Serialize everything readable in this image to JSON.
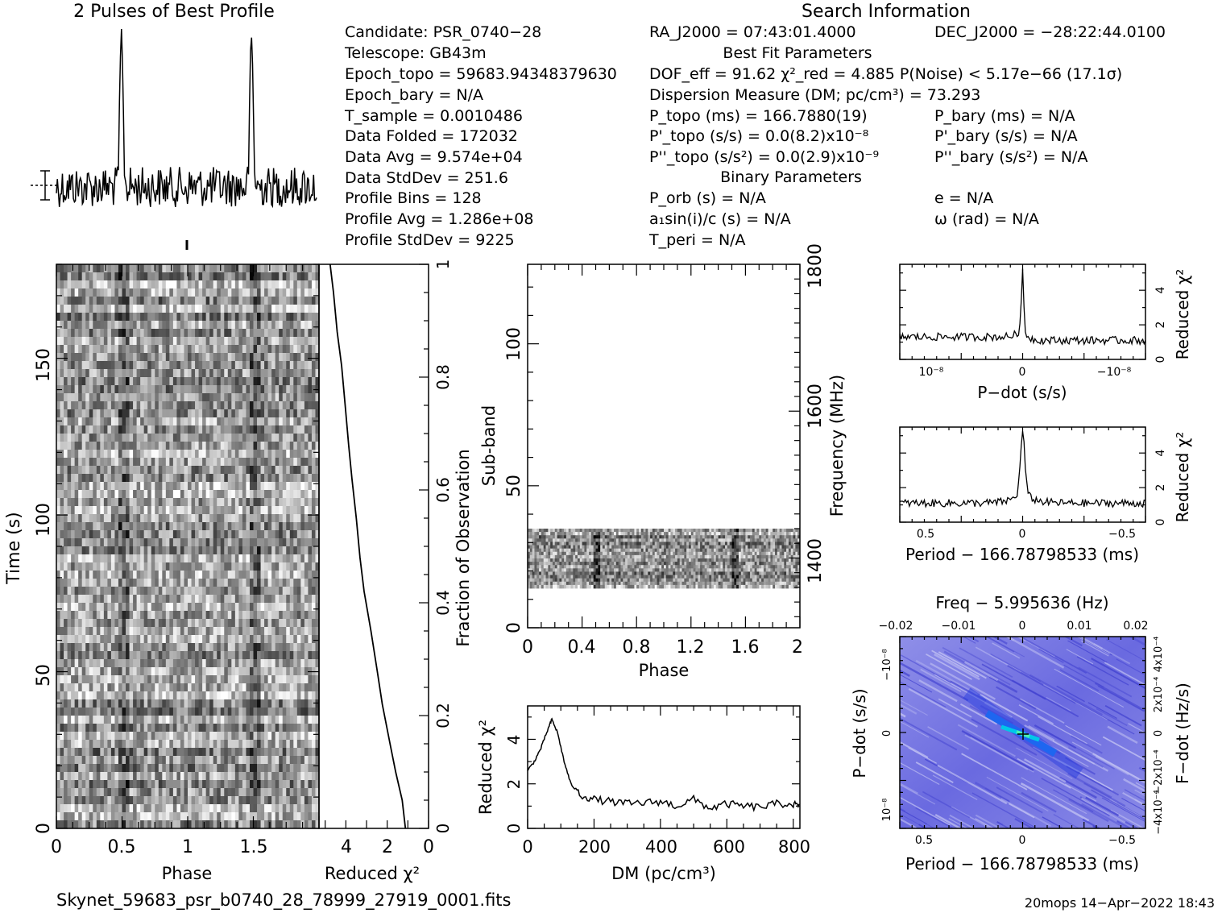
{
  "titles": {
    "profile_title": "2 Pulses of Best Profile",
    "search_title": "Search Information",
    "best_fit_title": "Best Fit Parameters",
    "binary_title": "Binary Parameters"
  },
  "info_col1": [
    "Candidate:  PSR_0740−28",
    "Telescope:  GB43m",
    "Epoch_topo = 59683.94348379630",
    "Epoch_bary = N/A",
    "T_sample    =  0.0010486",
    "Data Folded    =  172032",
    "Data Avg        =  9.574e+04",
    "Data StdDev    =  251.6",
    "Profile Bins     =  128",
    "Profile Avg      =  1.286e+08",
    "Profile StdDev =  9225"
  ],
  "info_col2": {
    "ra": "RA_J2000 = 07:43:01.4000",
    "dec": "DEC_J2000 = −28:22:44.0100",
    "dof_line": "DOF_eff = 91.62  χ²_red = 4.885  P(Noise) < 5.17e−66  (17.1σ)",
    "dm_line": "Dispersion Measure (DM; pc/cm³) = 73.293",
    "p_topo": "P_topo (ms) =  166.7880(19)",
    "pd_topo": "P'_topo (s/s) = 0.0(8.2)x10⁻⁸",
    "pdd_topo": "P''_topo (s/s²) = 0.0(2.9)x10⁻⁹",
    "p_bary": "P_bary (ms) = N/A",
    "pd_bary": "P'_bary (s/s) = N/A",
    "pdd_bary": "P''_bary (s/s²) = N/A",
    "porb": "P_orb (s) = N/A",
    "a1": "a₁sin(i)/c (s) = N/A",
    "tperi": "T_peri = N/A",
    "ecc": "e = N/A",
    "omega": "ω (rad) = N/A"
  },
  "footer": {
    "filename": "Skynet_59683_psr_b0740_28_78999_27919_0001.fits",
    "stamp": "20mops 14−Apr−2022 18:43"
  },
  "chart_data": [
    {
      "id": "profile",
      "type": "line",
      "title": "2 Pulses of Best Profile",
      "x": "phase 0-2",
      "peaks_phase": [
        0.5,
        1.5
      ]
    },
    {
      "id": "time_phase",
      "type": "heatmap",
      "xlabel": "Phase",
      "ylabel": "Time (s)",
      "xticks": [
        "0",
        "0.5",
        "1",
        "1.5"
      ],
      "yticks": [
        "0",
        "50",
        "100",
        "150"
      ],
      "xlim": [
        0,
        2
      ],
      "ylim": [
        0,
        180
      ]
    },
    {
      "id": "time_chi2",
      "type": "line",
      "xlabel": "Reduced χ²",
      "ylabel": "Fraction of Observation",
      "xticks": [
        "4",
        "2",
        "0"
      ],
      "yticks": [
        "0",
        "0.2",
        "0.4",
        "0.6",
        "0.8",
        "1"
      ],
      "x": [
        1.1,
        1.3,
        1.6,
        1.9,
        2.2,
        2.5,
        2.8,
        3.1,
        3.3,
        3.5,
        3.7,
        3.9,
        4.0,
        4.2,
        4.4,
        4.6,
        4.8
      ],
      "y": [
        0,
        0.05,
        0.1,
        0.15,
        0.22,
        0.28,
        0.35,
        0.42,
        0.48,
        0.55,
        0.62,
        0.68,
        0.75,
        0.82,
        0.88,
        0.95,
        1.0
      ]
    },
    {
      "id": "subband_phase",
      "type": "heatmap",
      "xlabel": "Phase",
      "ylabel": "Sub-band",
      "y2label": "Frequency (MHz)",
      "xticks": [
        "0",
        "0.4",
        "0.8",
        "1.2",
        "1.6",
        "2"
      ],
      "yticks": [
        "0",
        "50",
        "100"
      ],
      "y2ticks": [
        "1400",
        "1600",
        "1800"
      ],
      "data_subbands": [
        14,
        35
      ]
    },
    {
      "id": "dm_chi2",
      "type": "line",
      "xlabel": "DM (pc/cm³)",
      "ylabel": "Reduced χ²",
      "xticks": [
        "0",
        "200",
        "400",
        "600",
        "800"
      ],
      "yticks": [
        "0",
        "2",
        "4"
      ],
      "x": [
        0,
        20,
        40,
        60,
        73,
        90,
        110,
        130,
        160,
        200,
        250,
        300,
        350,
        400,
        450,
        500,
        550,
        600,
        650,
        700,
        750,
        800,
        820
      ],
      "y": [
        2.6,
        3.0,
        3.6,
        4.4,
        4.9,
        4.3,
        3.0,
        2.0,
        1.5,
        1.3,
        1.2,
        1.1,
        1.15,
        1.2,
        1.0,
        1.3,
        0.9,
        1.1,
        1.0,
        0.95,
        1.1,
        1.1,
        0.95
      ]
    },
    {
      "id": "pdot_chi2",
      "type": "line",
      "xlabel": "P−dot (s/s)",
      "ylabel": "Reduced χ²",
      "xticks": [
        "10⁻⁸",
        "0",
        "−10⁻⁸"
      ],
      "yticks": [
        "0",
        "2",
        "4"
      ],
      "peak": 5.2
    },
    {
      "id": "period_chi2",
      "type": "line",
      "xlabel": "Period − 166.78798533 (ms)",
      "ylabel": "Reduced χ²",
      "xticks": [
        "0.5",
        "0",
        "−0.5"
      ],
      "yticks": [
        "0",
        "2",
        "4"
      ],
      "peak": 5.2
    },
    {
      "id": "period_pdot",
      "type": "heatmap",
      "title": "Freq − 5.995636 (Hz)",
      "xlabel": "Period − 166.78798533 (ms)",
      "ylabel": "P−dot (s/s)",
      "y2label": "F−dot (Hz/s)",
      "xticks": [
        "0.5",
        "0",
        "−0.5"
      ],
      "x2ticks": [
        "−0.02",
        "−0.01",
        "0",
        "0.01",
        "0.02"
      ],
      "yticks": [
        "10⁻⁸",
        "0",
        "−10⁻⁸"
      ],
      "y2ticks": [
        "−4x10⁻⁴",
        "−2x10⁻⁴",
        "0",
        "2x10⁻⁴",
        "4x10⁻⁴"
      ]
    }
  ]
}
